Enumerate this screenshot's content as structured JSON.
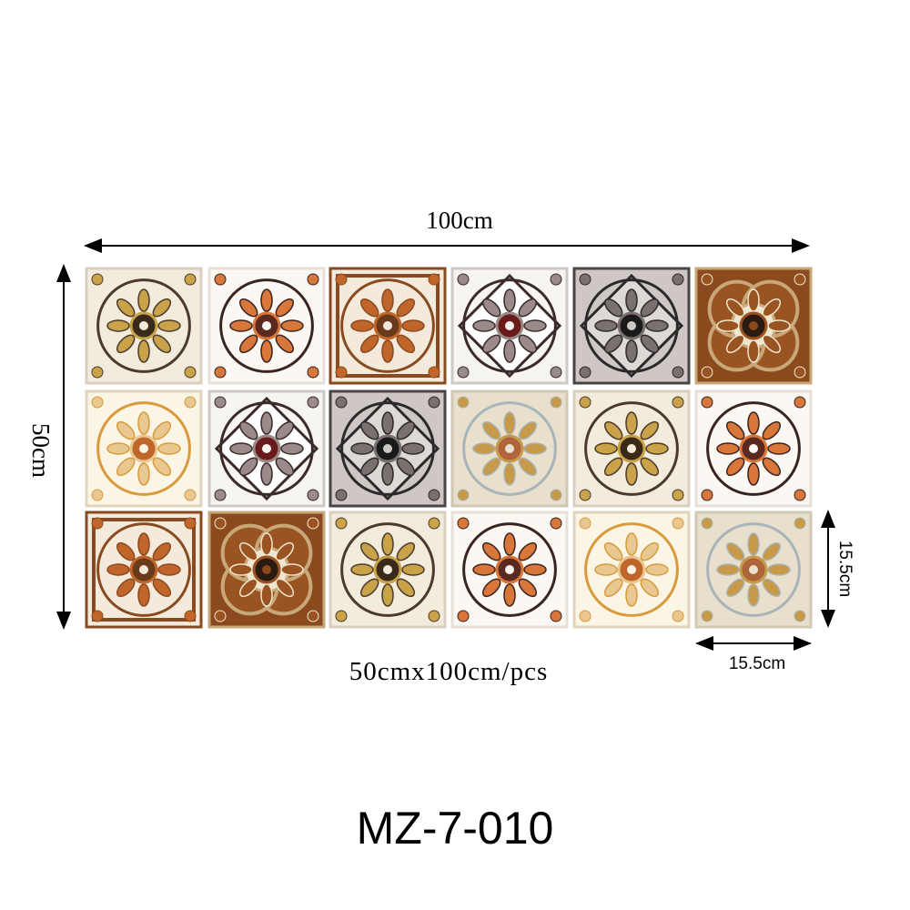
{
  "dimensions": {
    "width_label": "100cm",
    "height_label": "50cm",
    "tile_height_label": "15.5cm",
    "tile_width_label": "15.5cm",
    "size_note": "50cmx100cm/pcs"
  },
  "product_code": "MZ-7-010"
}
